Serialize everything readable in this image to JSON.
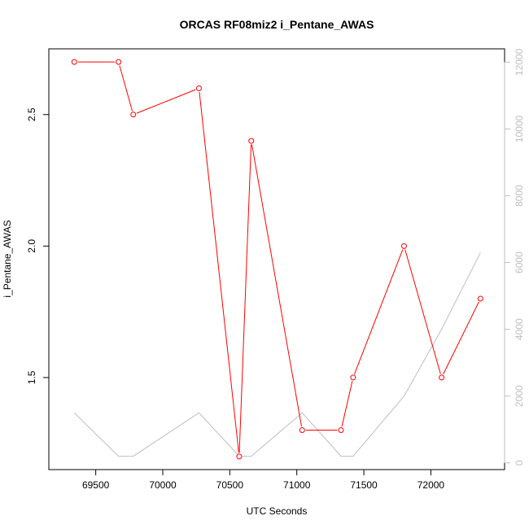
{
  "chart_data": {
    "type": "line",
    "title": "ORCAS RF08miz2 i_Pentane_AWAS",
    "xlabel": "UTC Seconds",
    "ylabel": "i_Pentane_AWAS",
    "xlim": [
      69150,
      72550
    ],
    "ylim": [
      1.15,
      2.75
    ],
    "y2lim": [
      -200,
      12400
    ],
    "x_ticks": [
      69500,
      70000,
      70500,
      71000,
      71500,
      72000
    ],
    "y_ticks": [
      1.5,
      2.0,
      2.5
    ],
    "y2_ticks": [
      0,
      2000,
      4000,
      6000,
      8000,
      10000,
      12000
    ],
    "grid": false,
    "series": [
      {
        "color": "#ff0000",
        "axis": "left",
        "markers": true,
        "x": [
          69340,
          69670,
          69780,
          70270,
          70570,
          70660,
          71040,
          71330,
          71420,
          71800,
          72080,
          72370
        ],
        "y": [
          2.7,
          2.7,
          2.5,
          2.6,
          1.2,
          2.4,
          1.3,
          1.3,
          1.5,
          2.0,
          1.5,
          1.8
        ]
      },
      {
        "color": "#bebebe",
        "axis": "right",
        "markers": false,
        "x": [
          69340,
          69670,
          69780,
          70270,
          70570,
          70660,
          71040,
          71330,
          71420,
          71800,
          72080,
          72370
        ],
        "y": [
          1500,
          200,
          200,
          1500,
          200,
          200,
          1500,
          200,
          200,
          2000,
          4000,
          6300
        ]
      }
    ]
  }
}
